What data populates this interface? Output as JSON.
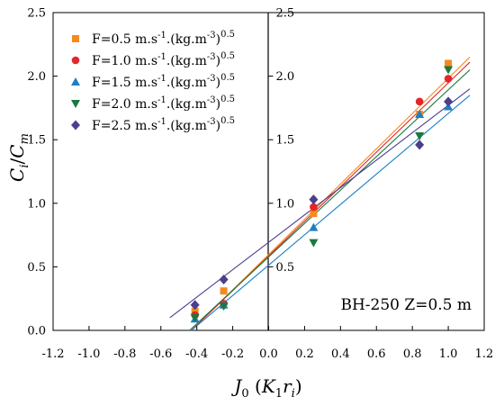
{
  "chart_data": {
    "type": "scatter",
    "title": "",
    "xlabel": "J_0 (K_1 r_i)",
    "ylabel": "C_i / C_m",
    "xlim": [
      -1.2,
      1.2
    ],
    "ylim": [
      0,
      2.5
    ],
    "x_ticks": [
      "-1.2",
      "-1.0",
      "-0.8",
      "-0.6",
      "-0.4",
      "-0.2",
      "0.0",
      "0.2",
      "0.4",
      "0.6",
      "0.8",
      "1.0",
      "1.2"
    ],
    "y_ticks": [
      "0.0",
      "0.5",
      "1.0",
      "1.5",
      "2.0",
      "2.5"
    ],
    "inner_y_ticks": [
      "0.5",
      "1.0",
      "1.5",
      "2.0",
      "2.5"
    ],
    "annotation": "BH-250  Z=0.5 m",
    "legend_position": "top-left",
    "grid": false,
    "series": [
      {
        "name": "F=0.5 m.s⁻¹.(kg.m⁻³)⁰·⁵",
        "label_main": "F=0.5 m.s",
        "label_parts": [
          "-1",
          ".(kg.m",
          "-3",
          ")",
          "0.5"
        ],
        "marker": "square",
        "color": "#F58B1F",
        "x": [
          -0.41,
          -0.25,
          0.25,
          0.84,
          1.0
        ],
        "y": [
          0.15,
          0.31,
          0.92,
          1.7,
          2.1
        ]
      },
      {
        "name": "F=1.0 m.s⁻¹.(kg.m⁻³)⁰·⁵",
        "label_main": "F=1.0 m.s",
        "label_parts": [
          "-1",
          ".(kg.m",
          "-3",
          ")",
          "0.5"
        ],
        "marker": "circle",
        "color": "#E3262B",
        "x": [
          -0.41,
          -0.25,
          0.25,
          0.84,
          1.0
        ],
        "y": [
          0.12,
          0.21,
          0.97,
          1.8,
          1.98
        ]
      },
      {
        "name": "F=1.5 m.s⁻¹.(kg.m⁻³)⁰·⁵",
        "label_main": "F=1.5 m.s",
        "label_parts": [
          "-1",
          ".(kg.m",
          "-3",
          ")",
          "0.5"
        ],
        "marker": "triangle-up",
        "color": "#1F7FC4",
        "x": [
          -0.41,
          -0.25,
          0.25,
          0.84,
          1.0
        ],
        "y": [
          0.09,
          0.2,
          0.81,
          1.7,
          1.76
        ]
      },
      {
        "name": "F=2.0 m.s⁻¹.(kg.m⁻³)⁰·⁵",
        "label_main": "F=2.0 m.s",
        "label_parts": [
          "-1",
          ".(kg.m",
          "-3",
          ")",
          "0.5"
        ],
        "marker": "triangle-down",
        "color": "#1A7A3E",
        "x": [
          -0.41,
          -0.25,
          0.25,
          0.84,
          1.0
        ],
        "y": [
          0.1,
          0.19,
          0.69,
          1.53,
          2.05
        ]
      },
      {
        "name": "F=2.5 m.s⁻¹.(kg.m⁻³)⁰·⁵",
        "label_main": "F=2.5 m.s",
        "label_parts": [
          "-1",
          ".(kg.m",
          "-3",
          ")",
          "0.5"
        ],
        "marker": "diamond",
        "color": "#4B3E8F",
        "x": [
          -0.41,
          -0.25,
          0.25,
          0.84,
          1.0
        ],
        "y": [
          0.2,
          0.4,
          1.03,
          1.46,
          1.8
        ]
      }
    ],
    "fit_lines": [
      {
        "color": "#F58B1F",
        "x": [
          -0.43,
          1.12
        ],
        "y": [
          0.0,
          2.15
        ]
      },
      {
        "color": "#E3262B",
        "x": [
          -0.43,
          1.12
        ],
        "y": [
          0.0,
          2.11
        ]
      },
      {
        "color": "#1F7FC4",
        "x": [
          -0.43,
          1.12
        ],
        "y": [
          0.0,
          1.85
        ]
      },
      {
        "color": "#1A7A3E",
        "x": [
          -0.44,
          1.12
        ],
        "y": [
          0.0,
          2.05
        ]
      },
      {
        "color": "#4B3E8F",
        "x": [
          -0.55,
          1.12
        ],
        "y": [
          0.1,
          1.9
        ]
      }
    ]
  }
}
